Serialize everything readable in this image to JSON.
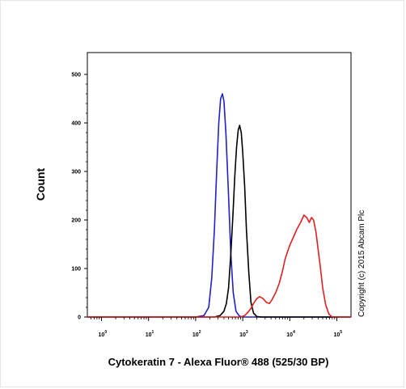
{
  "chart_data": {
    "type": "line",
    "xlabel": "Cytokeratin 7 - Alexa Fluor® 488 (525/30 BP)",
    "ylabel": "Count",
    "x_scale": "log",
    "xlim": [
      0.5,
      200000
    ],
    "ylim": [
      0,
      500
    ],
    "yticks": [
      "0",
      "100",
      "200",
      "300",
      "400",
      "500"
    ],
    "xticks": [
      {
        "base": "10",
        "exp": "0",
        "value": 1
      },
      {
        "base": "10",
        "exp": "1",
        "value": 10
      },
      {
        "base": "10",
        "exp": "2",
        "value": 100
      },
      {
        "base": "10",
        "exp": "3",
        "value": 1000
      },
      {
        "base": "10",
        "exp": "4",
        "value": 10000
      },
      {
        "base": "10",
        "exp": "5",
        "value": 100000
      }
    ],
    "annotation": "Copyright (c) 2015 Abcam Plc",
    "grid": false,
    "series": [
      {
        "color": "#2020c8",
        "points": [
          [
            0.5,
            0
          ],
          [
            100,
            0
          ],
          [
            150,
            3
          ],
          [
            190,
            20
          ],
          [
            220,
            80
          ],
          [
            250,
            180
          ],
          [
            280,
            300
          ],
          [
            310,
            400
          ],
          [
            340,
            450
          ],
          [
            370,
            460
          ],
          [
            400,
            445
          ],
          [
            440,
            380
          ],
          [
            500,
            250
          ],
          [
            560,
            130
          ],
          [
            630,
            50
          ],
          [
            720,
            12
          ],
          [
            850,
            2
          ],
          [
            1000,
            0
          ],
          [
            200000,
            0
          ]
        ]
      },
      {
        "color": "#000000",
        "points": [
          [
            0.5,
            0
          ],
          [
            250,
            0
          ],
          [
            330,
            3
          ],
          [
            400,
            12
          ],
          [
            450,
            28
          ],
          [
            500,
            60
          ],
          [
            560,
            130
          ],
          [
            620,
            210
          ],
          [
            680,
            290
          ],
          [
            740,
            350
          ],
          [
            800,
            385
          ],
          [
            860,
            395
          ],
          [
            930,
            380
          ],
          [
            1000,
            340
          ],
          [
            1100,
            270
          ],
          [
            1200,
            180
          ],
          [
            1350,
            90
          ],
          [
            1500,
            30
          ],
          [
            1700,
            8
          ],
          [
            2000,
            1
          ],
          [
            2500,
            0
          ],
          [
            200000,
            0
          ]
        ]
      },
      {
        "color": "#e02020",
        "points": [
          [
            0.5,
            0
          ],
          [
            900,
            0
          ],
          [
            1100,
            3
          ],
          [
            1300,
            10
          ],
          [
            1500,
            18
          ],
          [
            1700,
            28
          ],
          [
            2000,
            38
          ],
          [
            2300,
            42
          ],
          [
            2700,
            38
          ],
          [
            3200,
            30
          ],
          [
            3700,
            28
          ],
          [
            4200,
            36
          ],
          [
            5000,
            50
          ],
          [
            6000,
            70
          ],
          [
            7000,
            95
          ],
          [
            8000,
            120
          ],
          [
            9000,
            135
          ],
          [
            10000,
            148
          ],
          [
            12000,
            165
          ],
          [
            14000,
            180
          ],
          [
            17000,
            195
          ],
          [
            20000,
            210
          ],
          [
            23000,
            205
          ],
          [
            26000,
            195
          ],
          [
            29000,
            205
          ],
          [
            32000,
            200
          ],
          [
            36000,
            175
          ],
          [
            40000,
            140
          ],
          [
            45000,
            100
          ],
          [
            50000,
            60
          ],
          [
            58000,
            25
          ],
          [
            68000,
            6
          ],
          [
            80000,
            0
          ],
          [
            200000,
            0
          ]
        ]
      }
    ]
  }
}
